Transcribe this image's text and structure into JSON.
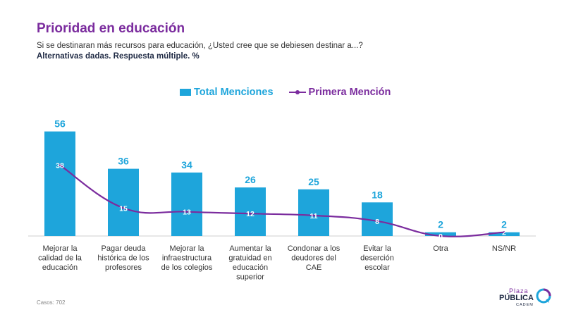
{
  "header": {
    "title": "Prioridad en educación",
    "subtitle": "Si se destinaran más recursos para educación, ¿Usted cree que se debiesen destinar a...?",
    "subtitle2": "Alternativas dadas. Respuesta múltiple. %"
  },
  "legend": {
    "total": "Total Menciones",
    "first": "Primera Mención"
  },
  "footer": {
    "casos": "Casos: 702"
  },
  "logo": {
    "plaza": "Plaza",
    "publica": "PÚBLICA",
    "cadem": "CADEM"
  },
  "colors": {
    "bar": "#1ea5db",
    "line": "#7b2c9e",
    "title": "#7b2c9e"
  },
  "chart_data": {
    "type": "bar",
    "categories": [
      [
        "Mejorar la",
        "calidad de la",
        "educación"
      ],
      [
        "Pagar deuda",
        "histórica de los",
        "profesores"
      ],
      [
        "Mejorar la",
        "infraestructura",
        "de los colegios"
      ],
      [
        "Aumentar la",
        "gratuidad en",
        "educación",
        "superior"
      ],
      [
        "Condonar a los",
        "deudores del",
        "CAE"
      ],
      [
        "Evitar la",
        "deserción",
        "escolar"
      ],
      [
        "Otra"
      ],
      [
        "NS/NR"
      ]
    ],
    "series": [
      {
        "name": "Total Menciones",
        "type": "bar",
        "values": [
          56,
          36,
          34,
          26,
          25,
          18,
          2,
          2
        ]
      },
      {
        "name": "Primera Mención",
        "type": "line",
        "values": [
          38,
          15,
          13,
          12,
          11,
          8,
          0,
          2
        ]
      }
    ],
    "ylim": [
      0,
      60
    ],
    "grid": false,
    "legend_position": "top-center"
  }
}
